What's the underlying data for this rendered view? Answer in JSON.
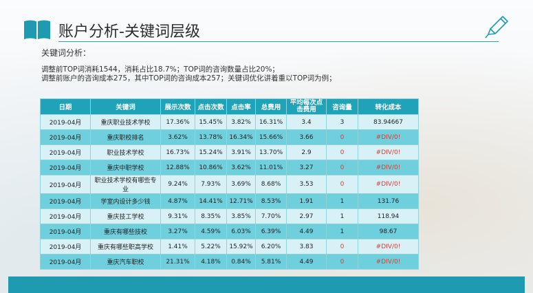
{
  "title": "账户分析-关键词层级",
  "subtitle": "关键词分析：",
  "desc_lines": [
    "调整前TOP词消耗1544，消耗占比18.7%；TOP词的咨询数量占比20%；",
    "调整前账户的咨询成本275，其中TOP词的咨询成本257；关键词优化讲着重以TOP词为例；"
  ],
  "table": {
    "headers": [
      "日期",
      "关键词",
      "展示次数",
      "点击次数",
      "点击率",
      "总费用",
      "平均每次点击费用",
      "咨询量",
      "转化成本"
    ],
    "rows": [
      [
        "2019-04月",
        "重庆职业技术学校",
        "17.36%",
        "15.45%",
        "3.82%",
        "16.31%",
        "3.4",
        "3",
        "83.94667"
      ],
      [
        "2019-04月",
        "重庆职校排名",
        "3.62%",
        "13.78%",
        "16.34%",
        "15.66%",
        "3.66",
        "0",
        "#DIV/0!"
      ],
      [
        "2019-04月",
        "职业技术学校",
        "16.73%",
        "15.24%",
        "3.91%",
        "13.70%",
        "2.9",
        "0",
        "#DIV/0!"
      ],
      [
        "2019-04月",
        "重庆中职学校",
        "12.88%",
        "10.86%",
        "3.62%",
        "11.01%",
        "3.27",
        "0",
        "#DIV/0!"
      ],
      [
        "2019-04月",
        "职业技术学校有哪些专业",
        "9.24%",
        "7.93%",
        "3.69%",
        "8.68%",
        "3.53",
        "0",
        "#DIV/0!"
      ],
      [
        "2019-04月",
        "学室内设计多少钱",
        "4.87%",
        "14.41%",
        "12.71%",
        "8.53%",
        "1.91",
        "1",
        "131.76"
      ],
      [
        "2019-04月",
        "重庆技工学校",
        "9.31%",
        "8.35%",
        "3.85%",
        "7.70%",
        "2.97",
        "1",
        "118.94"
      ],
      [
        "2019-04月",
        "重庆有哪些技校",
        "3.27%",
        "4.59%",
        "6.03%",
        "6.39%",
        "4.49",
        "1",
        "98.67"
      ],
      [
        "2019-04月",
        "重庆有哪些职高学校",
        "1.41%",
        "5.22%",
        "15.92%",
        "6.20%",
        "3.83",
        "0",
        "#DIV/0!"
      ],
      [
        "2019-04月",
        "重庆汽车职校",
        "21.31%",
        "4.18%",
        "0.84%",
        "5.81%",
        "4.49",
        "0",
        "#DIV/0!"
      ]
    ]
  },
  "colors": {
    "accent": "#1fa3b8",
    "error": "#e0392f"
  },
  "icons": {
    "title": "book-icon",
    "corner": "pencil-icon"
  }
}
